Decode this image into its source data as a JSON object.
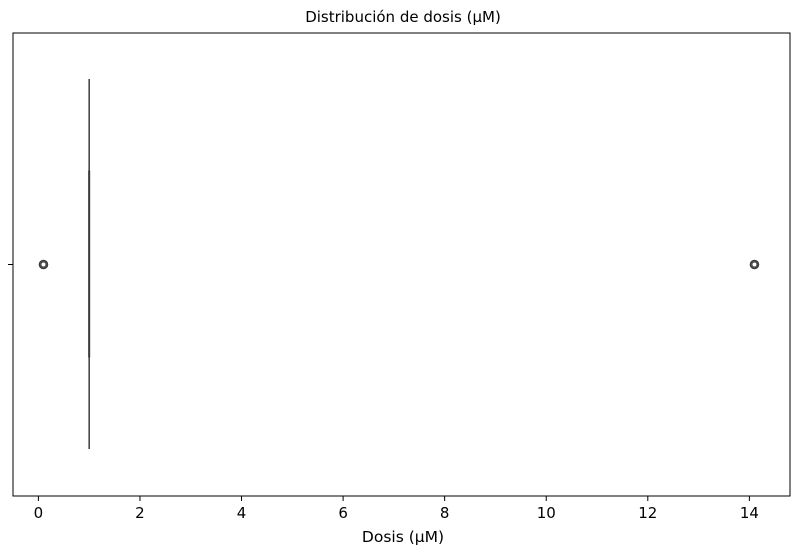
{
  "chart_data": {
    "type": "box",
    "title": "Distribución de dosis (μM)",
    "xlabel": "Dosis (μM)",
    "ylabel": "",
    "orientation": "horizontal",
    "xlim": [
      -0.5,
      14.8
    ],
    "xticks": [
      0,
      2,
      4,
      6,
      8,
      10,
      12,
      14
    ],
    "xtick_labels": [
      "0",
      "2",
      "4",
      "6",
      "8",
      "10",
      "12",
      "14"
    ],
    "grid": false,
    "box": {
      "q1": 1,
      "median": 1,
      "q3": 1,
      "whisker_low": 1,
      "whisker_high": 1,
      "outliers": [
        0.1,
        14.1
      ]
    },
    "colors": {
      "box_fill": "#3f73ae",
      "line": "#3c3c3c",
      "frame": "#000000"
    }
  }
}
